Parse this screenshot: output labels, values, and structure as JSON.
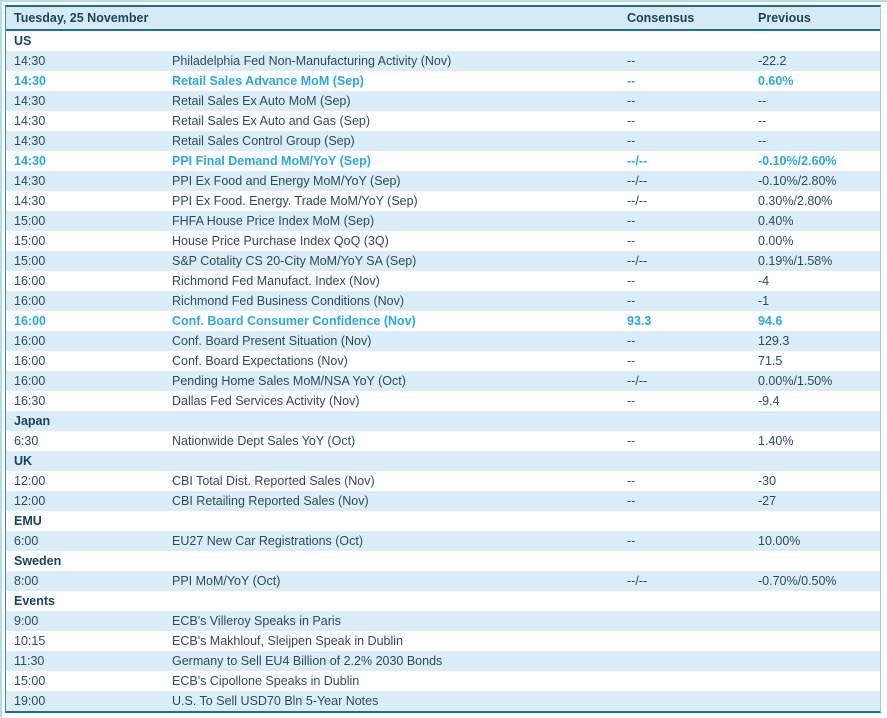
{
  "header": {
    "date_label": "Tuesday, 25 November",
    "consensus_label": "Consensus",
    "previous_label": "Previous"
  },
  "colors": {
    "accent_cyan": "#29a9e0",
    "border_teal": "#1b7189",
    "stripe_blue": "#daedf8",
    "header_blue": "#d6eaf5",
    "text_dark": "#2d4b5e"
  },
  "sections": [
    {
      "name": "US",
      "rows": [
        {
          "time": "14:30",
          "event": "Philadelphia Fed Non-Manufacturing Activity (Nov)",
          "consensus": "--",
          "previous": "-22.2",
          "highlight": false
        },
        {
          "time": "14:30",
          "event": "Retail Sales Advance MoM (Sep)",
          "consensus": "--",
          "previous": "0.60%",
          "highlight": true
        },
        {
          "time": "14:30",
          "event": "Retail Sales Ex Auto MoM (Sep)",
          "consensus": "--",
          "previous": "--",
          "highlight": false
        },
        {
          "time": "14:30",
          "event": "Retail Sales Ex Auto and Gas (Sep)",
          "consensus": "--",
          "previous": "--",
          "highlight": false
        },
        {
          "time": "14:30",
          "event": "Retail Sales Control Group (Sep)",
          "consensus": "--",
          "previous": "--",
          "highlight": false
        },
        {
          "time": "14:30",
          "event": "PPI Final Demand MoM/YoY (Sep)",
          "consensus": "--/--",
          "previous": "-0.10%/2.60%",
          "highlight": true
        },
        {
          "time": "14:30",
          "event": "PPI Ex Food and Energy MoM/YoY (Sep)",
          "consensus": "--/--",
          "previous": "-0.10%/2.80%",
          "highlight": false
        },
        {
          "time": "14:30",
          "event": "PPI Ex Food. Energy. Trade MoM/YoY (Sep)",
          "consensus": "--/--",
          "previous": "0.30%/2.80%",
          "highlight": false
        },
        {
          "time": "15:00",
          "event": "FHFA House Price Index MoM (Sep)",
          "consensus": "--",
          "previous": "0.40%",
          "highlight": false
        },
        {
          "time": "15:00",
          "event": "House Price Purchase Index QoQ (3Q)",
          "consensus": "--",
          "previous": "0.00%",
          "highlight": false
        },
        {
          "time": "15:00",
          "event": "S&P Cotality CS 20-City MoM/YoY SA (Sep)",
          "consensus": "--/--",
          "previous": "0.19%/1.58%",
          "highlight": false
        },
        {
          "time": "16:00",
          "event": "Richmond Fed Manufact. Index (Nov)",
          "consensus": "--",
          "previous": "-4",
          "highlight": false
        },
        {
          "time": "16:00",
          "event": "Richmond Fed Business Conditions (Nov)",
          "consensus": "--",
          "previous": "-1",
          "highlight": false
        },
        {
          "time": "16:00",
          "event": "Conf. Board Consumer Confidence (Nov)",
          "consensus": "93.3",
          "previous": "94.6",
          "highlight": true
        },
        {
          "time": "16:00",
          "event": "Conf. Board Present Situation (Nov)",
          "consensus": "--",
          "previous": "129.3",
          "highlight": false
        },
        {
          "time": "16:00",
          "event": "Conf. Board Expectations (Nov)",
          "consensus": "--",
          "previous": "71.5",
          "highlight": false
        },
        {
          "time": "16:00",
          "event": "Pending Home Sales MoM/NSA YoY (Oct)",
          "consensus": "--/--",
          "previous": "0.00%/1.50%",
          "highlight": false
        },
        {
          "time": "16:30",
          "event": "Dallas Fed Services Activity (Nov)",
          "consensus": "--",
          "previous": "-9.4",
          "highlight": false
        }
      ]
    },
    {
      "name": "Japan",
      "rows": [
        {
          "time": "6:30",
          "event": "Nationwide Dept Sales YoY (Oct)",
          "consensus": "--",
          "previous": "1.40%",
          "highlight": false
        }
      ]
    },
    {
      "name": "UK",
      "rows": [
        {
          "time": "12:00",
          "event": "CBI Total Dist. Reported Sales (Nov)",
          "consensus": "--",
          "previous": "-30",
          "highlight": false
        },
        {
          "time": "12:00",
          "event": "CBI Retailing Reported Sales (Nov)",
          "consensus": "--",
          "previous": "-27",
          "highlight": false
        }
      ]
    },
    {
      "name": "EMU",
      "rows": [
        {
          "time": "6:00",
          "event": "EU27 New Car Registrations (Oct)",
          "consensus": "--",
          "previous": "10.00%",
          "highlight": false
        }
      ]
    },
    {
      "name": "Sweden",
      "rows": [
        {
          "time": "8:00",
          "event": "PPI MoM/YoY (Oct)",
          "consensus": "--/--",
          "previous": "-0.70%/0.50%",
          "highlight": false
        }
      ]
    },
    {
      "name": "Events",
      "rows": [
        {
          "time": "9:00",
          "event": "ECB's Villeroy Speaks in Paris",
          "consensus": "",
          "previous": "",
          "highlight": false
        },
        {
          "time": "10:15",
          "event": "ECB's Makhlouf, Sleijpen Speak in Dublin",
          "consensus": "",
          "previous": "",
          "highlight": false
        },
        {
          "time": "11:30",
          "event": "Germany to Sell EU4 Billion of 2.2% 2030 Bonds",
          "consensus": "",
          "previous": "",
          "highlight": false
        },
        {
          "time": "15:00",
          "event": "ECB's Cipollone Speaks in Dublin",
          "consensus": "",
          "previous": "",
          "highlight": false
        },
        {
          "time": "19:00",
          "event": "U.S. To Sell USD70 Bln 5-Year Notes",
          "consensus": "",
          "previous": "",
          "highlight": false
        }
      ]
    }
  ]
}
